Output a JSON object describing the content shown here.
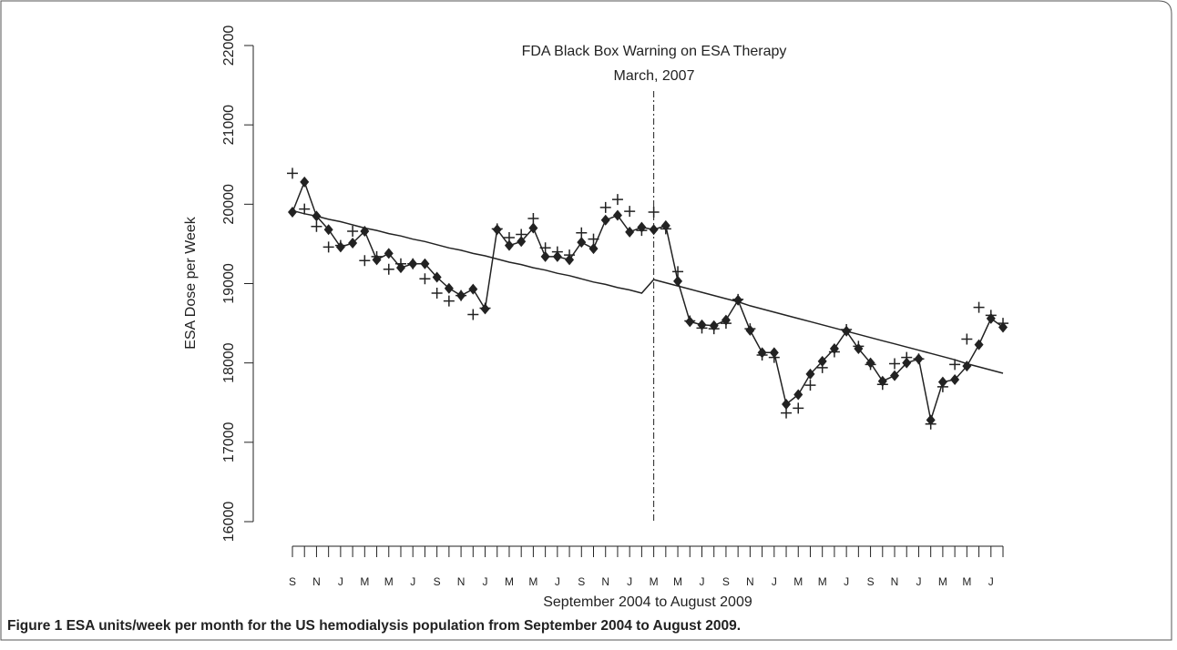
{
  "chart_data": {
    "type": "line",
    "annotation": [
      "FDA Black Box Warning on ESA Therapy",
      "March, 2007"
    ],
    "vline_index": 30,
    "xlabel": "September 2004 to August 2009",
    "ylabel": "ESA Dose per Week",
    "caption": "Figure 1 ESA units/week per month for the US hemodialysis population from September 2004 to August 2009.",
    "categories": [
      "S",
      null,
      "N",
      null,
      "J",
      null,
      "M",
      null,
      "M",
      null,
      "J",
      null,
      "S",
      null,
      "N",
      null,
      "J",
      null,
      "M",
      null,
      "M",
      null,
      "J",
      null,
      "S",
      null,
      "N",
      null,
      "J",
      null,
      "M",
      null,
      "M",
      null,
      "J",
      null,
      "S",
      null,
      "N",
      null,
      "J",
      null,
      "M",
      null,
      "M",
      null,
      "J",
      null,
      "S",
      null,
      "N",
      null,
      "J",
      null,
      "M",
      null,
      "M",
      null,
      "J",
      null
    ],
    "ylim": [
      16000,
      22000
    ],
    "yticks": [
      16000,
      17000,
      18000,
      19000,
      20000,
      21000,
      22000
    ],
    "series": [
      {
        "marker": "diamond",
        "color": "#222222",
        "values": [
          19900,
          20280,
          19850,
          19680,
          19460,
          19510,
          19660,
          19300,
          19380,
          19200,
          19250,
          19250,
          19080,
          18940,
          18850,
          18930,
          18680,
          19680,
          19480,
          19530,
          19700,
          19340,
          19340,
          19300,
          19520,
          19440,
          19800,
          19860,
          19650,
          19710,
          19680,
          19730,
          19030,
          18520,
          18480,
          18470,
          18540,
          18790,
          18410,
          18130,
          18130,
          17480,
          17600,
          17860,
          18020,
          18180,
          18400,
          18180,
          18000,
          17770,
          17840,
          18000,
          18050,
          17280,
          17760,
          17790,
          17960,
          18230,
          18560,
          18450
        ]
      },
      {
        "marker": "plus",
        "color": "#222222",
        "values": [
          20390,
          19940,
          19720,
          19460,
          19480,
          19660,
          19290,
          19340,
          19180,
          19250,
          19250,
          19060,
          18880,
          18780,
          18850,
          18610,
          18690,
          19690,
          19580,
          19620,
          19820,
          19450,
          19400,
          19360,
          19640,
          19560,
          19960,
          20060,
          19910,
          19670,
          19900,
          19690,
          19150,
          18530,
          18440,
          18430,
          18500,
          18800,
          18430,
          18100,
          18070,
          17370,
          17430,
          17720,
          17940,
          18140,
          18420,
          18210,
          17980,
          17730,
          17990,
          18070,
          18050,
          17230,
          17700,
          17980,
          18300,
          18700,
          18600,
          18500
        ]
      },
      {
        "marker": "none",
        "color": "#222222",
        "values": [
          19920,
          19880,
          19850,
          19810,
          19780,
          19740,
          19700,
          19670,
          19630,
          19600,
          19560,
          19530,
          19490,
          19450,
          19420,
          19380,
          19350,
          19310,
          19270,
          19240,
          19200,
          19170,
          19130,
          19100,
          19060,
          19020,
          18990,
          18950,
          18920,
          18880,
          19050,
          19010,
          18970,
          18930,
          18890,
          18850,
          18810,
          18770,
          18720,
          18680,
          18640,
          18600,
          18560,
          18520,
          18480,
          18440,
          18400,
          18360,
          18320,
          18280,
          18240,
          18200,
          18160,
          18120,
          18080,
          18040,
          17990,
          17950,
          17910,
          17870
        ]
      }
    ]
  }
}
